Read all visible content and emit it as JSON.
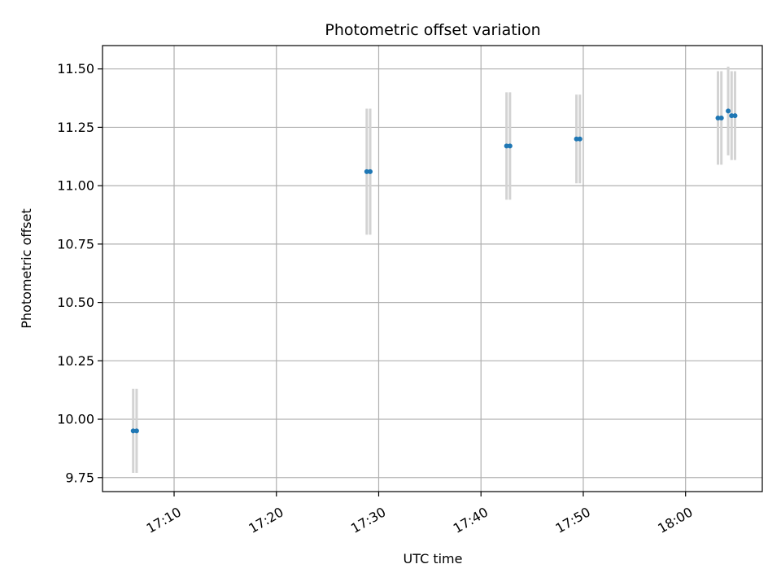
{
  "chart_data": {
    "type": "scatter",
    "title": "Photometric offset variation",
    "xlabel": "UTC time",
    "ylabel": "Photometric offset",
    "x_is_time": true,
    "xlim": [
      "17:03:00",
      "18:07:30"
    ],
    "ylim": [
      9.69,
      11.6
    ],
    "x_ticks": [
      "17:10",
      "17:20",
      "17:30",
      "17:40",
      "17:50",
      "18:00"
    ],
    "y_ticks": [
      9.75,
      10.0,
      10.25,
      10.5,
      10.75,
      11.0,
      11.25,
      11.5
    ],
    "y_tick_labels": [
      "9.75",
      "10.00",
      "10.25",
      "10.50",
      "10.75",
      "11.00",
      "11.25",
      "11.50"
    ],
    "grid": true,
    "series": [
      {
        "marker_color": "#1f77b4",
        "errorbar_color": "#d3d3d3",
        "points": [
          {
            "t": "17:06:00",
            "y": 9.95,
            "yerr": 0.18
          },
          {
            "t": "17:06:20",
            "y": 9.95,
            "yerr": 0.18
          },
          {
            "t": "17:28:50",
            "y": 11.06,
            "yerr": 0.27
          },
          {
            "t": "17:29:10",
            "y": 11.06,
            "yerr": 0.27
          },
          {
            "t": "17:42:30",
            "y": 11.17,
            "yerr": 0.23
          },
          {
            "t": "17:42:50",
            "y": 11.17,
            "yerr": 0.23
          },
          {
            "t": "17:49:20",
            "y": 11.2,
            "yerr": 0.19
          },
          {
            "t": "17:49:40",
            "y": 11.2,
            "yerr": 0.19
          },
          {
            "t": "18:03:10",
            "y": 11.29,
            "yerr": 0.2
          },
          {
            "t": "18:03:30",
            "y": 11.29,
            "yerr": 0.2
          },
          {
            "t": "18:04:10",
            "y": 11.32,
            "yerr": 0.19
          },
          {
            "t": "18:04:30",
            "y": 11.3,
            "yerr": 0.19
          },
          {
            "t": "18:04:50",
            "y": 11.3,
            "yerr": 0.19
          }
        ]
      }
    ]
  }
}
